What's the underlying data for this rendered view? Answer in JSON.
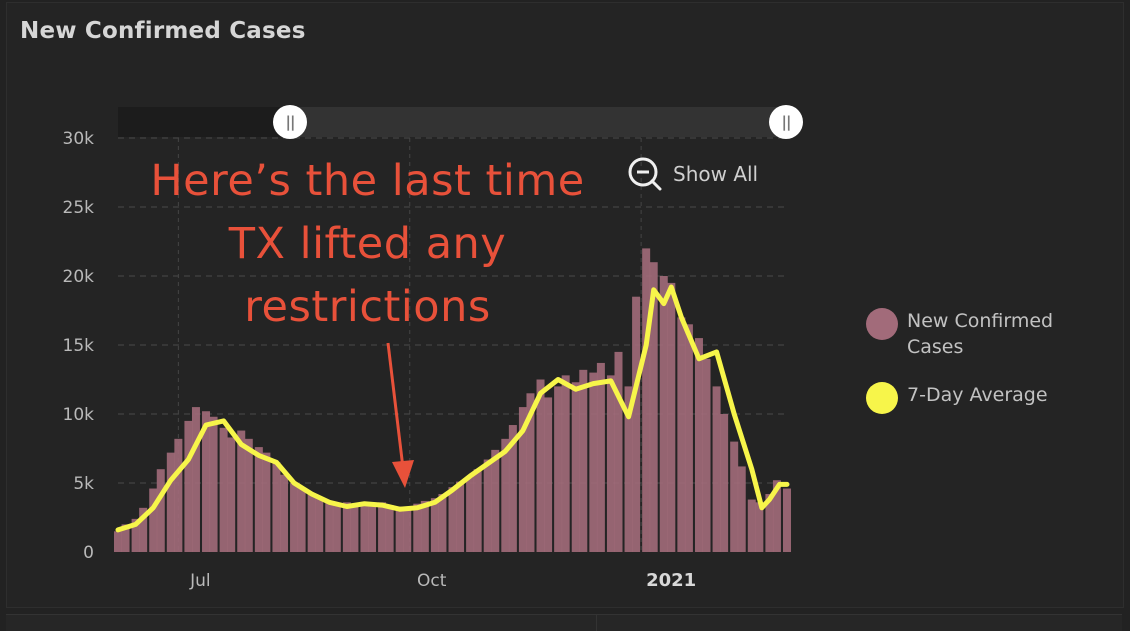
{
  "title": "New Confirmed Cases",
  "annotation": {
    "lines": [
      "Here’s the last time",
      "TX lifted any",
      "restrictions"
    ],
    "color": "#e8513a"
  },
  "zoom": {
    "label": "Show All",
    "icon": "zoom-out-icon"
  },
  "range_slider": {
    "left_handle_icon": "drag-handle-icon",
    "right_handle_icon": "drag-handle-icon"
  },
  "legend": [
    {
      "label_lines": [
        "New Confirmed",
        "Cases"
      ],
      "color": "#a26b7a"
    },
    {
      "label_lines": [
        "7-Day Average"
      ],
      "color": "#f7f54a"
    }
  ],
  "chart_data": {
    "type": "bar",
    "series_types": [
      "bar",
      "line"
    ],
    "yticks": [
      "0",
      "5k",
      "10k",
      "15k",
      "20k",
      "25k",
      "30k"
    ],
    "ylim": [
      0,
      30000
    ],
    "xticks": [
      {
        "label": "Jul",
        "date": "2020-07-01",
        "bold": false
      },
      {
        "label": "Oct",
        "date": "2020-10-01",
        "bold": false
      },
      {
        "label": "2021",
        "date": "2021-01-01",
        "bold": true
      }
    ],
    "x_start": "2020-06-07",
    "x_end": "2021-02-28",
    "grid": true,
    "legend_position": "right",
    "series": [
      {
        "name": "New Confirmed Cases",
        "color": "#a26b7a",
        "type": "bar",
        "points": [
          [
            "2020-06-07",
            1500
          ],
          [
            "2020-06-10",
            2000
          ],
          [
            "2020-06-14",
            2400
          ],
          [
            "2020-06-17",
            3200
          ],
          [
            "2020-06-21",
            4600
          ],
          [
            "2020-06-24",
            6000
          ],
          [
            "2020-06-28",
            7200
          ],
          [
            "2020-07-01",
            8200
          ],
          [
            "2020-07-05",
            9500
          ],
          [
            "2020-07-08",
            10500
          ],
          [
            "2020-07-12",
            10200
          ],
          [
            "2020-07-15",
            9800
          ],
          [
            "2020-07-19",
            9000
          ],
          [
            "2020-07-22",
            8300
          ],
          [
            "2020-07-26",
            8800
          ],
          [
            "2020-07-29",
            8200
          ],
          [
            "2020-08-02",
            7600
          ],
          [
            "2020-08-05",
            7200
          ],
          [
            "2020-08-09",
            6500
          ],
          [
            "2020-08-12",
            5600
          ],
          [
            "2020-08-16",
            5000
          ],
          [
            "2020-08-19",
            4600
          ],
          [
            "2020-08-23",
            4200
          ],
          [
            "2020-08-26",
            3900
          ],
          [
            "2020-08-30",
            3600
          ],
          [
            "2020-09-02",
            3400
          ],
          [
            "2020-09-06",
            3600
          ],
          [
            "2020-09-09",
            3500
          ],
          [
            "2020-09-13",
            3400
          ],
          [
            "2020-09-16",
            3300
          ],
          [
            "2020-09-20",
            3600
          ],
          [
            "2020-09-23",
            3400
          ],
          [
            "2020-09-27",
            3300
          ],
          [
            "2020-09-30",
            3300
          ],
          [
            "2020-10-04",
            3500
          ],
          [
            "2020-10-07",
            3700
          ],
          [
            "2020-10-11",
            3900
          ],
          [
            "2020-10-14",
            4200
          ],
          [
            "2020-10-18",
            4700
          ],
          [
            "2020-10-21",
            5100
          ],
          [
            "2020-10-25",
            5500
          ],
          [
            "2020-10-28",
            6000
          ],
          [
            "2020-11-01",
            6700
          ],
          [
            "2020-11-04",
            7400
          ],
          [
            "2020-11-08",
            8200
          ],
          [
            "2020-11-11",
            9200
          ],
          [
            "2020-11-15",
            10500
          ],
          [
            "2020-11-18",
            11500
          ],
          [
            "2020-11-22",
            12500
          ],
          [
            "2020-11-25",
            11200
          ],
          [
            "2020-11-29",
            12000
          ],
          [
            "2020-12-02",
            12800
          ],
          [
            "2020-12-06",
            12300
          ],
          [
            "2020-12-09",
            13200
          ],
          [
            "2020-12-13",
            13000
          ],
          [
            "2020-12-16",
            13700
          ],
          [
            "2020-12-20",
            12800
          ],
          [
            "2020-12-23",
            14500
          ],
          [
            "2020-12-27",
            12000
          ],
          [
            "2020-12-30",
            18500
          ],
          [
            "2021-01-03",
            22000
          ],
          [
            "2021-01-06",
            21000
          ],
          [
            "2021-01-10",
            20000
          ],
          [
            "2021-01-13",
            19500
          ],
          [
            "2021-01-17",
            17000
          ],
          [
            "2021-01-20",
            16500
          ],
          [
            "2021-01-24",
            15500
          ],
          [
            "2021-01-27",
            14000
          ],
          [
            "2021-01-31",
            12000
          ],
          [
            "2021-02-03",
            10000
          ],
          [
            "2021-02-07",
            8000
          ],
          [
            "2021-02-10",
            6200
          ],
          [
            "2021-02-14",
            3800
          ],
          [
            "2021-02-17",
            3600
          ],
          [
            "2021-02-21",
            4200
          ],
          [
            "2021-02-24",
            5200
          ],
          [
            "2021-02-28",
            4600
          ]
        ]
      },
      {
        "name": "7-Day Average",
        "color": "#f7f54a",
        "type": "line",
        "points": [
          [
            "2020-06-07",
            1600
          ],
          [
            "2020-06-14",
            2000
          ],
          [
            "2020-06-21",
            3200
          ],
          [
            "2020-06-28",
            5200
          ],
          [
            "2020-07-05",
            6700
          ],
          [
            "2020-07-12",
            9200
          ],
          [
            "2020-07-19",
            9500
          ],
          [
            "2020-07-26",
            7800
          ],
          [
            "2020-08-02",
            7000
          ],
          [
            "2020-08-09",
            6500
          ],
          [
            "2020-08-16",
            5000
          ],
          [
            "2020-08-23",
            4200
          ],
          [
            "2020-08-30",
            3600
          ],
          [
            "2020-09-06",
            3300
          ],
          [
            "2020-09-13",
            3500
          ],
          [
            "2020-09-20",
            3400
          ],
          [
            "2020-09-27",
            3100
          ],
          [
            "2020-10-04",
            3200
          ],
          [
            "2020-10-11",
            3600
          ],
          [
            "2020-10-18",
            4500
          ],
          [
            "2020-10-25",
            5500
          ],
          [
            "2020-11-01",
            6400
          ],
          [
            "2020-11-08",
            7300
          ],
          [
            "2020-11-15",
            8800
          ],
          [
            "2020-11-22",
            11500
          ],
          [
            "2020-11-29",
            12500
          ],
          [
            "2020-12-06",
            11800
          ],
          [
            "2020-12-13",
            12200
          ],
          [
            "2020-12-20",
            12400
          ],
          [
            "2020-12-27",
            9800
          ],
          [
            "2021-01-03",
            15000
          ],
          [
            "2021-01-06",
            19000
          ],
          [
            "2021-01-10",
            18000
          ],
          [
            "2021-01-13",
            19200
          ],
          [
            "2021-01-17",
            17000
          ],
          [
            "2021-01-24",
            14000
          ],
          [
            "2021-01-31",
            14500
          ],
          [
            "2021-02-07",
            10000
          ],
          [
            "2021-02-14",
            6000
          ],
          [
            "2021-02-18",
            3200
          ],
          [
            "2021-02-21",
            3800
          ],
          [
            "2021-02-25",
            4900
          ],
          [
            "2021-02-28",
            4900
          ]
        ]
      }
    ]
  }
}
